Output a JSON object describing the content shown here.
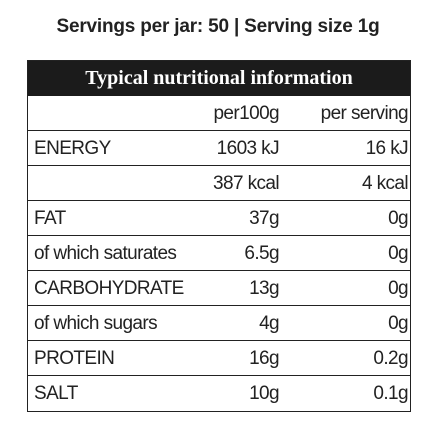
{
  "title": "Servings per jar: 50 | Serving size 1g",
  "table": {
    "header": "Typical nutritional information",
    "columns": {
      "per_100g": "per100g",
      "per_serving": "per serving"
    },
    "rows": [
      {
        "label": "ENERGY",
        "per_100g": "1603 kJ",
        "per_serving": "16 kJ"
      },
      {
        "per_100g": "387 kcal",
        "per_serving": "4 kcal"
      },
      {
        "label": "FAT",
        "per_100g": "37g",
        "per_serving": "0g"
      },
      {
        "label": "of which saturates",
        "per_100g": "6.5g",
        "per_serving": "0g"
      },
      {
        "label": "CARBOHYDRATE",
        "per_100g": "13g",
        "per_serving": "0g"
      },
      {
        "label": "of which sugars",
        "per_100g": "4g",
        "per_serving": "0g"
      },
      {
        "label": "PROTEIN",
        "per_100g": "16g",
        "per_serving": "0.2g"
      },
      {
        "label": "SALT",
        "per_100g": "10g",
        "per_serving": "0.1g"
      }
    ]
  }
}
